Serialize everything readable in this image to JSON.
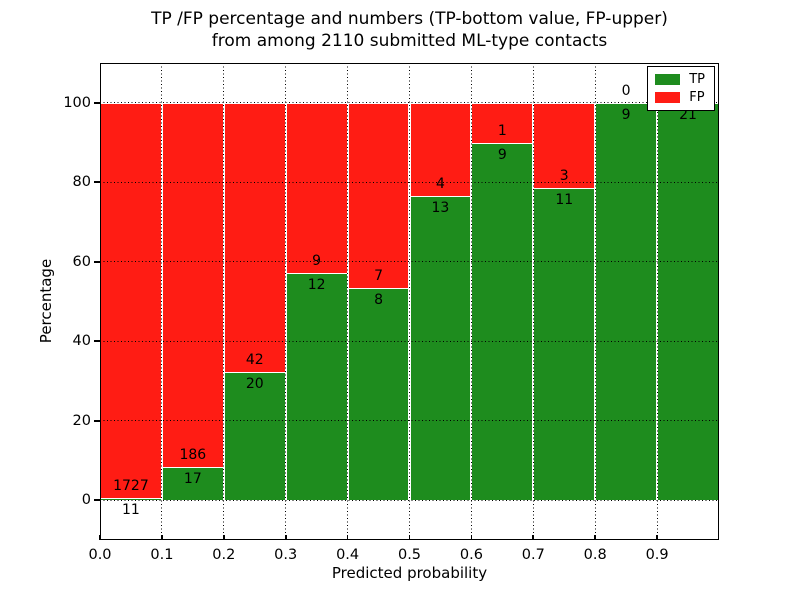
{
  "figure": {
    "title_line1": "TP /FP percentage and numbers (TP-bottom value, FP-upper)",
    "title_line2": "from among 2110 submitted ML-type contacts"
  },
  "chart_data": {
    "type": "bar",
    "stacked": true,
    "normalized_to_percent": true,
    "title": "TP /FP percentage and numbers (TP-bottom value, FP-upper)\nfrom among 2110 submitted ML-type contacts",
    "xlabel": "Predicted probability",
    "ylabel": "Percentage",
    "xlim": [
      0.0,
      1.0
    ],
    "ylim": [
      -10,
      110
    ],
    "bin_width": 0.1,
    "bin_starts": [
      0.0,
      0.1,
      0.2,
      0.3,
      0.4,
      0.5,
      0.6,
      0.7,
      0.8,
      0.9
    ],
    "xtick_values": [
      0.0,
      0.1,
      0.2,
      0.3,
      0.4,
      0.5,
      0.6,
      0.7,
      0.8,
      0.9
    ],
    "xtick_labels": [
      "0.0",
      "0.1",
      "0.2",
      "0.3",
      "0.4",
      "0.5",
      "0.6",
      "0.7",
      "0.8",
      "0.9"
    ],
    "ytick_values": [
      0,
      20,
      40,
      60,
      80,
      100
    ],
    "ytick_labels": [
      "0",
      "20",
      "40",
      "60",
      "80",
      "100"
    ],
    "series": [
      {
        "name": "TP",
        "color": "#1e8c1e",
        "counts": [
          11,
          17,
          20,
          12,
          8,
          13,
          9,
          11,
          9,
          21
        ]
      },
      {
        "name": "FP",
        "color": "#ff1c14",
        "counts": [
          1727,
          186,
          42,
          9,
          7,
          4,
          1,
          3,
          0,
          0
        ]
      }
    ],
    "tp_percent": [
      0.6,
      8.4,
      32.3,
      57.1,
      53.3,
      76.5,
      90.0,
      78.6,
      100.0,
      100.0
    ],
    "total_contacts": 2110,
    "legend": {
      "position": "upper right",
      "entries": [
        "TP",
        "FP"
      ]
    },
    "grid": {
      "style": "dotted",
      "color": "#000000"
    }
  },
  "colors": {
    "tp": "#1e8c1e",
    "fp": "#ff1c14",
    "background": "#ffffff",
    "text": "#000000"
  }
}
